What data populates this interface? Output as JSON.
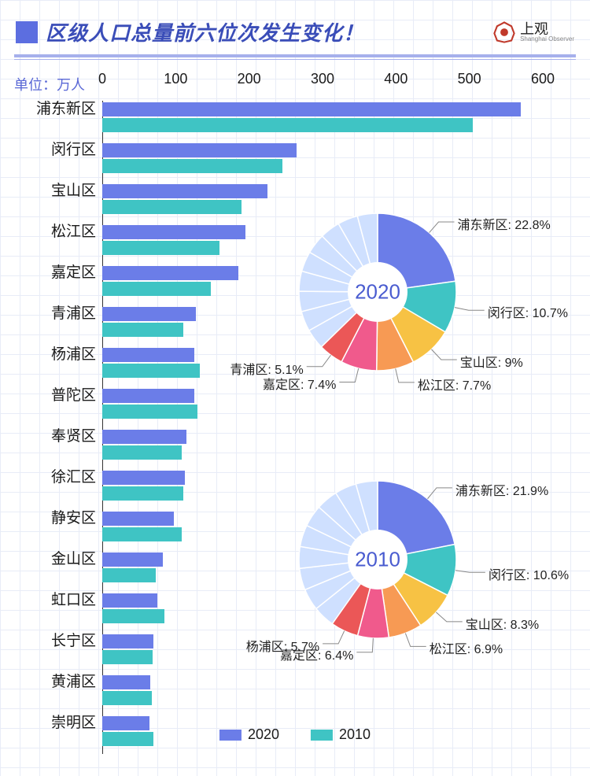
{
  "header": {
    "title": "区级人口总量前六位次发生变化！",
    "brand_cn": "上观",
    "brand_en": "Shanghai Observer"
  },
  "unit_label": "单位：万人",
  "colors": {
    "c2020": "#6b7de8",
    "c2010": "#3fc4c4",
    "title": "#3a4db8",
    "grid": "#e8ecf7",
    "accent": "#5c6ee0"
  },
  "bar_chart": {
    "xmax": 600,
    "xticks": [
      0,
      100,
      200,
      300,
      400,
      500,
      600
    ],
    "categories": [
      "浦东新区",
      "闵行区",
      "宝山区",
      "松江区",
      "嘉定区",
      "青浦区",
      "杨浦区",
      "普陀区",
      "奉贤区",
      "徐汇区",
      "静安区",
      "金山区",
      "虹口区",
      "长宁区",
      "黄浦区",
      "崇明区"
    ],
    "v2020": [
      570,
      265,
      225,
      195,
      185,
      128,
      125,
      125,
      115,
      112,
      98,
      82,
      75,
      70,
      65,
      64
    ],
    "v2010": [
      505,
      245,
      190,
      160,
      148,
      110,
      133,
      130,
      108,
      110,
      108,
      73,
      85,
      69,
      68,
      70
    ]
  },
  "legend": {
    "a": "2020",
    "b": "2010"
  },
  "pie2020": {
    "center_label": "2020",
    "slices": [
      {
        "label": "浦东新区",
        "pct": 22.8,
        "color": "#6b7de8"
      },
      {
        "label": "闵行区",
        "pct": 10.7,
        "color": "#3fc4c4"
      },
      {
        "label": "宝山区",
        "pct": 9.0,
        "color": "#f7c244"
      },
      {
        "label": "松江区",
        "pct": 7.7,
        "color": "#f79a54"
      },
      {
        "label": "嘉定区",
        "pct": 7.4,
        "color": "#f05a8c"
      },
      {
        "label": "青浦区",
        "pct": 5.1,
        "color": "#eb5757"
      }
    ],
    "rest_color": "#cfe0ff",
    "rest_sep_count": 9
  },
  "pie2010": {
    "center_label": "2010",
    "slices": [
      {
        "label": "浦东新区",
        "pct": 21.9,
        "color": "#6b7de8"
      },
      {
        "label": "闵行区",
        "pct": 10.6,
        "color": "#3fc4c4"
      },
      {
        "label": "宝山区",
        "pct": 8.3,
        "color": "#f7c244"
      },
      {
        "label": "松江区",
        "pct": 6.9,
        "color": "#f79a54"
      },
      {
        "label": "嘉定区",
        "pct": 6.4,
        "color": "#f05a8c"
      },
      {
        "label": "杨浦区",
        "pct": 5.7,
        "color": "#eb5757"
      }
    ],
    "rest_color": "#cfe0ff",
    "rest_sep_count": 9
  }
}
